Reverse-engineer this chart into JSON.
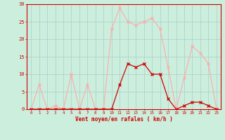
{
  "x": [
    0,
    1,
    2,
    3,
    4,
    5,
    6,
    7,
    8,
    9,
    10,
    11,
    12,
    13,
    14,
    15,
    16,
    17,
    18,
    19,
    20,
    21,
    22,
    23
  ],
  "rafales": [
    0,
    7,
    0,
    1,
    0,
    10,
    0,
    7,
    0,
    0,
    23,
    29,
    25,
    24,
    25,
    26,
    23,
    12,
    0,
    9,
    18,
    16,
    13,
    0
  ],
  "moyen": [
    0,
    0,
    0,
    0,
    0,
    0,
    0,
    0,
    0,
    0,
    0,
    7,
    13,
    12,
    13,
    10,
    10,
    3,
    0,
    1,
    2,
    2,
    1,
    0
  ],
  "bg_color": "#cceedd",
  "grid_color": "#aacccc",
  "line_color_rafales": "#ffaaaa",
  "line_color_moyen": "#cc0000",
  "xlabel": "Vent moyen/en rafales ( km/h )",
  "xlabel_color": "#cc0000",
  "tick_color": "#cc0000",
  "spine_color": "#cc0000",
  "ylim": [
    0,
    30
  ],
  "yticks": [
    0,
    5,
    10,
    15,
    20,
    25,
    30
  ],
  "xlim": [
    -0.5,
    23.5
  ]
}
